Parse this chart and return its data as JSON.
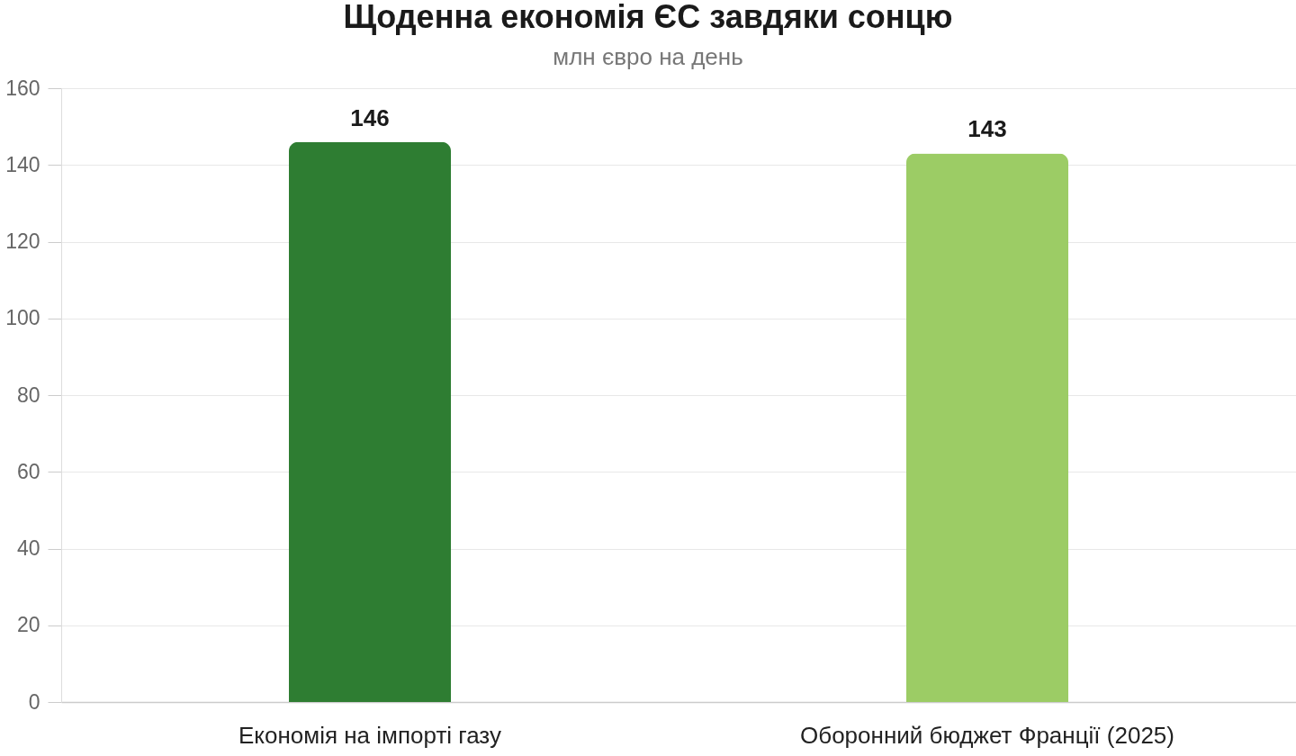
{
  "chart_data": {
    "type": "bar",
    "title": "Щоденна економія ЄС завдяки сонцю",
    "subtitle": "млн євро на день",
    "categories": [
      "Економія на імпорті газу",
      "Оборонний бюджет Франції (2025)"
    ],
    "values": [
      146,
      143
    ],
    "colors": [
      "#2e7d32",
      "#9ccc65"
    ],
    "ylim": [
      0,
      160
    ],
    "yticks": [
      0,
      20,
      40,
      60,
      80,
      100,
      120,
      140,
      160
    ],
    "grid": "y",
    "data_labels": true
  }
}
